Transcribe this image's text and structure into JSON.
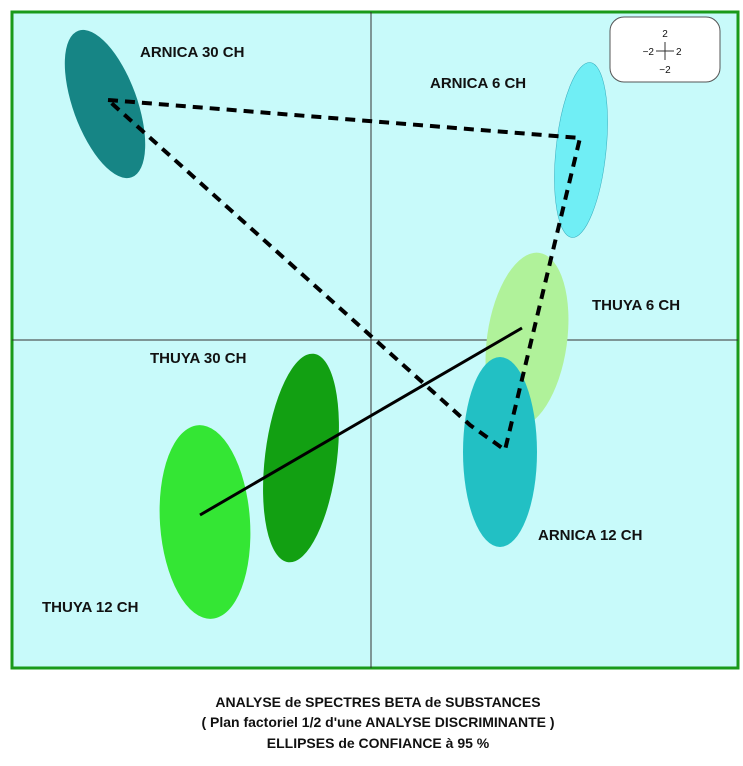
{
  "groups": [
    {
      "label": "ARNICA 30 CH"
    },
    {
      "label": "ARNICA 6 CH"
    },
    {
      "label": "THUYA 6 CH"
    },
    {
      "label": "THUYA 30 CH"
    },
    {
      "label": "ARNICA 12 CH"
    },
    {
      "label": "THUYA 12 CH"
    }
  ],
  "scale": {
    "top": "2",
    "left": "−2",
    "right": "2",
    "bottom": "−2"
  },
  "caption": [
    "ANALYSE de SPECTRES BETA de SUBSTANCES",
    "( Plan factoriel 1/2 d'une ANALYSE DISCRIMINANTE )",
    "ELLIPSES de CONFIANCE à 95 %"
  ]
}
